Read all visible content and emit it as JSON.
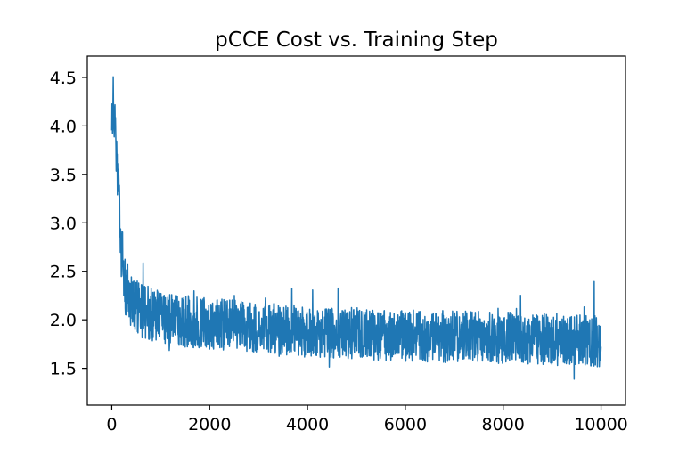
{
  "chart_data": {
    "type": "line",
    "title": "pCCE Cost vs. Training Step",
    "xlabel": "",
    "ylabel": "",
    "xlim": [
      -500,
      10500
    ],
    "ylim": [
      1.12,
      4.72
    ],
    "xticks": [
      0,
      2000,
      4000,
      6000,
      8000,
      10000
    ],
    "xtick_labels": [
      "0",
      "2000",
      "4000",
      "6000",
      "8000",
      "10000"
    ],
    "yticks": [
      1.5,
      2.0,
      2.5,
      3.0,
      3.5,
      4.0,
      4.5
    ],
    "ytick_labels": [
      "1.5",
      "2.0",
      "2.5",
      "3.0",
      "3.5",
      "4.0",
      "4.5"
    ],
    "grid": false,
    "legend": "none",
    "series": [
      {
        "color": "#1f77b4",
        "x": [
          0,
          25,
          50,
          75,
          100,
          125,
          150,
          175,
          200,
          250,
          300,
          400,
          500,
          600,
          700,
          800,
          1000,
          1200,
          1500,
          2000,
          2500,
          3000,
          3500,
          4000,
          4500,
          5000,
          5500,
          6000,
          6500,
          7000,
          7500,
          8000,
          8500,
          9000,
          9500,
          10000
        ],
        "y": [
          3.95,
          4.3,
          4.15,
          3.85,
          3.6,
          3.45,
          3.2,
          2.95,
          2.7,
          2.45,
          2.3,
          2.2,
          2.15,
          2.1,
          2.08,
          2.05,
          2.03,
          2.0,
          1.98,
          1.96,
          1.94,
          1.92,
          1.9,
          1.88,
          1.87,
          1.86,
          1.85,
          1.84,
          1.83,
          1.82,
          1.82,
          1.81,
          1.8,
          1.8,
          1.79,
          1.78
        ]
      }
    ],
    "noise_band": {
      "x": [
        0,
        200,
        400,
        1000,
        3000,
        6000,
        10000
      ],
      "amplitude": [
        0.25,
        0.32,
        0.3,
        0.27,
        0.26,
        0.27,
        0.27
      ]
    }
  }
}
